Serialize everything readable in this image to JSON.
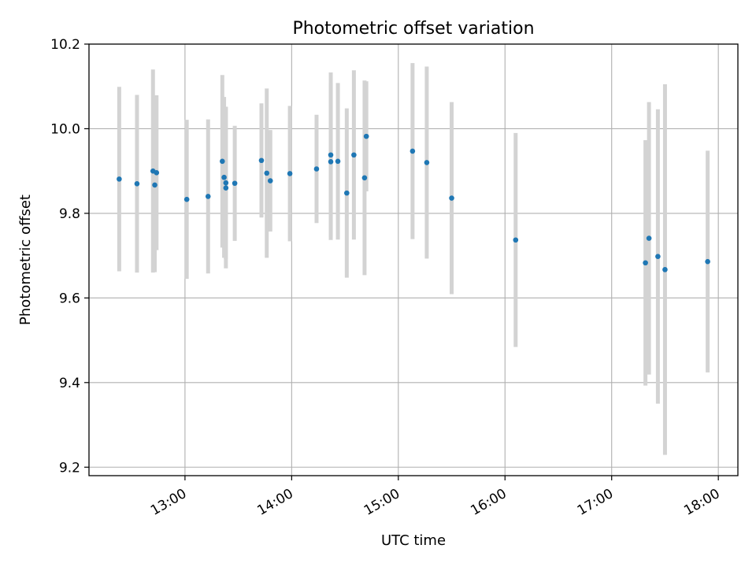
{
  "chart_data": {
    "type": "scatter",
    "title": "Photometric offset variation",
    "xlabel": "UTC time",
    "ylabel": "Photometric offset",
    "x_unit": "UTC time of day",
    "xlim": [
      "12:06",
      "18:11"
    ],
    "ylim": [
      9.18,
      10.2
    ],
    "x_ticks": [
      "13:00",
      "14:00",
      "15:00",
      "16:00",
      "17:00",
      "18:00"
    ],
    "y_ticks": [
      9.2,
      9.4,
      9.6,
      9.8,
      10.0,
      10.2
    ],
    "y_tick_labels": [
      "9.2",
      "9.4",
      "9.6",
      "9.8",
      "10.0",
      "10.2"
    ],
    "grid": true,
    "colors": {
      "marker": "#1f77b4",
      "errorbar": "#d3d3d3",
      "grid": "#b0b0b0"
    },
    "series": [
      {
        "points": [
          {
            "x": "12:23",
            "y": 9.881,
            "err": 0.218
          },
          {
            "x": "12:33",
            "y": 9.87,
            "err": 0.21
          },
          {
            "x": "12:42",
            "y": 9.9,
            "err": 0.24
          },
          {
            "x": "12:43",
            "y": 9.867,
            "err": 0.206
          },
          {
            "x": "12:44",
            "y": 9.896,
            "err": 0.183
          },
          {
            "x": "13:01",
            "y": 9.833,
            "err": 0.188
          },
          {
            "x": "13:13",
            "y": 9.84,
            "err": 0.182
          },
          {
            "x": "13:21",
            "y": 9.923,
            "err": 0.204
          },
          {
            "x": "13:22",
            "y": 9.885,
            "err": 0.19
          },
          {
            "x": "13:23",
            "y": 9.872,
            "err": 0.18
          },
          {
            "x": "13:23",
            "y": 9.86,
            "err": 0.19
          },
          {
            "x": "13:28",
            "y": 9.871,
            "err": 0.136
          },
          {
            "x": "13:43",
            "y": 9.925,
            "err": 0.135
          },
          {
            "x": "13:46",
            "y": 9.895,
            "err": 0.2
          },
          {
            "x": "13:48",
            "y": 9.877,
            "err": 0.12
          },
          {
            "x": "13:59",
            "y": 9.894,
            "err": 0.16
          },
          {
            "x": "14:14",
            "y": 9.905,
            "err": 0.128
          },
          {
            "x": "14:22",
            "y": 9.922,
            "err": 0.185
          },
          {
            "x": "14:22",
            "y": 9.938,
            "err": 0.195
          },
          {
            "x": "14:26",
            "y": 9.923,
            "err": 0.185
          },
          {
            "x": "14:31",
            "y": 9.848,
            "err": 0.2
          },
          {
            "x": "14:35",
            "y": 9.938,
            "err": 0.2
          },
          {
            "x": "14:41",
            "y": 9.884,
            "err": 0.23
          },
          {
            "x": "14:42",
            "y": 9.982,
            "err": 0.13
          },
          {
            "x": "15:08",
            "y": 9.947,
            "err": 0.208
          },
          {
            "x": "15:16",
            "y": 9.92,
            "err": 0.227
          },
          {
            "x": "15:30",
            "y": 9.836,
            "err": 0.227
          },
          {
            "x": "16:06",
            "y": 9.737,
            "err": 0.253
          },
          {
            "x": "17:19",
            "y": 9.683,
            "err": 0.29
          },
          {
            "x": "17:21",
            "y": 9.741,
            "err": 0.322
          },
          {
            "x": "17:26",
            "y": 9.698,
            "err": 0.348
          },
          {
            "x": "17:30",
            "y": 9.667,
            "err": 0.438
          },
          {
            "x": "17:54",
            "y": 9.686,
            "err": 0.262
          }
        ]
      }
    ]
  }
}
